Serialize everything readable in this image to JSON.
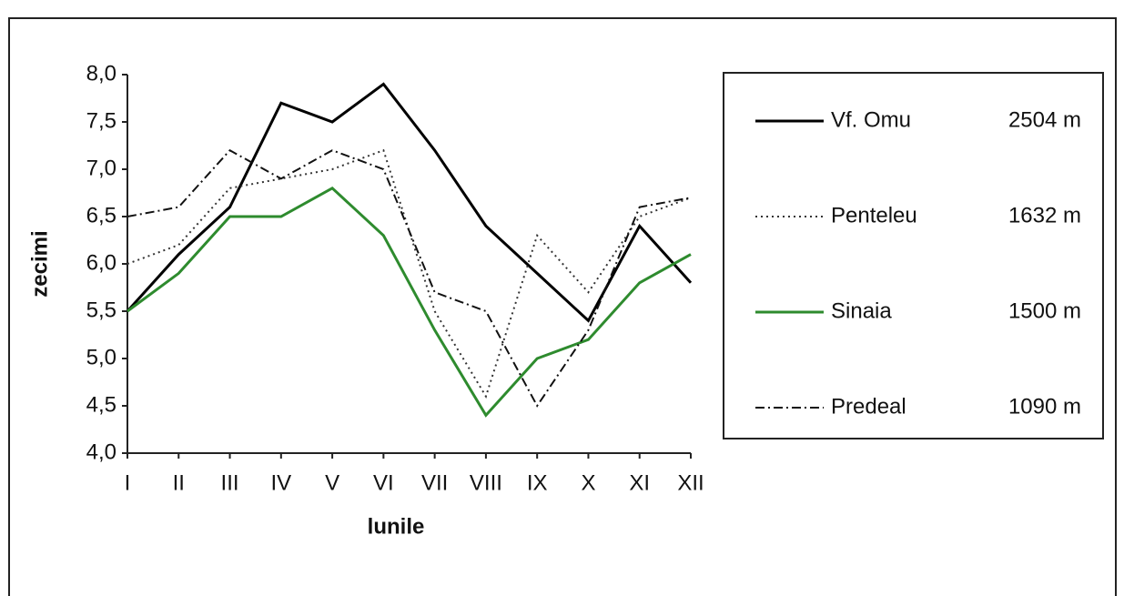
{
  "chart_data": {
    "type": "line",
    "y_label": "zecimi",
    "x_label": "lunile",
    "categories": [
      "I",
      "II",
      "III",
      "IV",
      "V",
      "VI",
      "VII",
      "VIII",
      "IX",
      "X",
      "XI",
      "XII"
    ],
    "series": [
      {
        "name": "Vf. Omu",
        "altitude": "2504 m",
        "color": "#000000",
        "style": "solid",
        "values": [
          5.5,
          6.1,
          6.6,
          7.7,
          7.5,
          7.9,
          7.2,
          6.4,
          5.9,
          5.4,
          6.4,
          5.8
        ]
      },
      {
        "name": "Penteleu",
        "altitude": "1632 m",
        "color": "#333333",
        "style": "dotted",
        "values": [
          6.0,
          6.2,
          6.8,
          6.9,
          7.0,
          7.2,
          5.5,
          4.6,
          6.3,
          5.7,
          6.5,
          6.7
        ]
      },
      {
        "name": "Sinaia",
        "altitude": "1500 m",
        "color": "#2e8b2e",
        "style": "solid",
        "values": [
          5.5,
          5.9,
          6.5,
          6.5,
          6.8,
          6.3,
          5.3,
          4.4,
          5.0,
          5.2,
          5.8,
          6.1
        ]
      },
      {
        "name": "Predeal",
        "altitude": "1090 m",
        "color": "#111111",
        "style": "dashdot",
        "values": [
          6.5,
          6.6,
          7.2,
          6.9,
          7.2,
          7.0,
          5.7,
          5.5,
          4.5,
          5.3,
          6.6,
          6.7
        ]
      }
    ],
    "ylim": [
      4.0,
      8.0
    ],
    "yticks": [
      {
        "value": 4.0,
        "label": "4,0"
      },
      {
        "value": 4.5,
        "label": "4,5"
      },
      {
        "value": 5.0,
        "label": "5,0"
      },
      {
        "value": 5.5,
        "label": "5,5"
      },
      {
        "value": 6.0,
        "label": "6,0"
      },
      {
        "value": 6.5,
        "label": "6,5"
      },
      {
        "value": 7.0,
        "label": "7,0"
      },
      {
        "value": 7.5,
        "label": "7,5"
      },
      {
        "value": 8.0,
        "label": "8,0"
      }
    ],
    "grid": false,
    "legend": "right"
  }
}
